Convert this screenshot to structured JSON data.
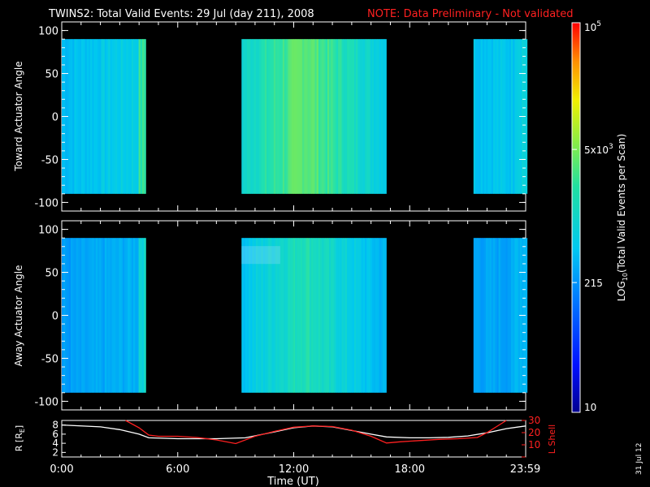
{
  "header": {
    "title": "TWINS2: Total Valid Events: 29 Jul (day 211), 2008",
    "note": "NOTE: Data Preliminary - Not validated"
  },
  "footer": {
    "x_axis_title": "Time (UT)",
    "stamp": "31 Jul 12"
  },
  "colors": {
    "background": "#000000",
    "text": "#ffffff",
    "note": "#ff2020",
    "lshell": "#ff2020",
    "radius": "#ffffff"
  },
  "chart_data": [
    {
      "type": "heatmap",
      "id": "toward",
      "ylabel": "Toward Actuator Angle",
      "ylim": [
        -110,
        110
      ],
      "yticks": [
        100,
        50,
        0,
        -50,
        -100
      ],
      "ytick_labels": [
        "100",
        "50",
        "0",
        "-50",
        "-100"
      ],
      "data_extent_y": [
        -90,
        90
      ],
      "xlim_hours": [
        0,
        24
      ],
      "data_blocks": [
        {
          "start_hour": 0.0,
          "end_hour": 4.3
        },
        {
          "start_hour": 9.3,
          "end_hour": 16.7
        },
        {
          "start_hour": 21.3,
          "end_hour": 24.0
        }
      ]
    },
    {
      "type": "heatmap",
      "id": "away",
      "ylabel": "Away Actuator Angle",
      "ylim": [
        -110,
        110
      ],
      "yticks": [
        100,
        50,
        0,
        -50,
        -100
      ],
      "ytick_labels": [
        "100",
        "50",
        "0",
        "-50",
        "-100"
      ],
      "data_extent_y": [
        -90,
        90
      ],
      "xlim_hours": [
        0,
        24
      ],
      "data_blocks": [
        {
          "start_hour": 0.0,
          "end_hour": 4.3
        },
        {
          "start_hour": 9.3,
          "end_hour": 16.7
        },
        {
          "start_hour": 21.3,
          "end_hour": 24.0
        }
      ]
    },
    {
      "type": "line",
      "id": "orbit",
      "ylabel": "R [R",
      "ylabel_sub": "E",
      "ylabel_close": "]",
      "ylim": [
        1,
        9
      ],
      "yticks": [
        2,
        4,
        6,
        8
      ],
      "ytick_labels": [
        "2",
        "4",
        "6",
        "8"
      ],
      "ylabel_right": "L Shell",
      "ylim_right": [
        0,
        30
      ],
      "yticks_right": [
        0,
        10,
        20,
        30
      ],
      "ytick_labels_right": [
        "10",
        "20",
        "30"
      ],
      "xlim_hours": [
        0,
        24
      ],
      "xticks_hours": [
        0,
        6,
        12,
        18,
        23.98
      ],
      "xtick_labels": [
        "0:00",
        "6:00",
        "12:00",
        "18:00",
        "23:59"
      ],
      "series": [
        {
          "color": "#ffffff",
          "x": [
            0,
            2,
            3,
            4,
            4.5,
            6,
            8,
            9.5,
            11,
            12,
            13,
            14,
            15,
            16,
            16.8,
            18,
            19,
            20,
            21,
            22,
            23,
            24
          ],
          "y": [
            8.0,
            7.6,
            7.0,
            6.0,
            5.2,
            5.0,
            5.0,
            5.2,
            6.5,
            7.4,
            7.8,
            7.6,
            6.8,
            6.0,
            5.4,
            5.2,
            5.2,
            5.3,
            5.6,
            6.3,
            7.2,
            7.8
          ]
        },
        {
          "color": "#ff2020",
          "axis": "right",
          "x": [
            3.3,
            4.0,
            4.5,
            5.0,
            6.0,
            7.0,
            8.0,
            9.0,
            10.0,
            11.0,
            12.0,
            13.0,
            14.0,
            15.0,
            16.0,
            16.8,
            17.5,
            18.5,
            19.5,
            20.5,
            21.5,
            22.0,
            22.5,
            23.0
          ],
          "y": [
            30.0,
            24.0,
            18.0,
            17.0,
            17.0,
            16.0,
            14.0,
            11.0,
            17.0,
            21.0,
            24.5,
            25.5,
            25.0,
            22.0,
            17.0,
            11.5,
            12.5,
            13.5,
            14.5,
            15.0,
            16.0,
            20.0,
            25.0,
            30.0
          ]
        }
      ]
    },
    {
      "type": "heatmap",
      "id": "colorbar",
      "scale": "log",
      "range": [
        10,
        100000
      ],
      "label": "LOG",
      "label_sub": "10",
      "label_rest": "(Total Valid Events per Scan)",
      "ticks": [
        10,
        215,
        5000,
        100000
      ],
      "tick_labels": [
        {
          "base": "10",
          "sup": ""
        },
        {
          "base": "215",
          "sup": ""
        },
        {
          "base": "5x10",
          "sup": "3"
        },
        {
          "base": "10",
          "sup": "5"
        }
      ]
    }
  ]
}
